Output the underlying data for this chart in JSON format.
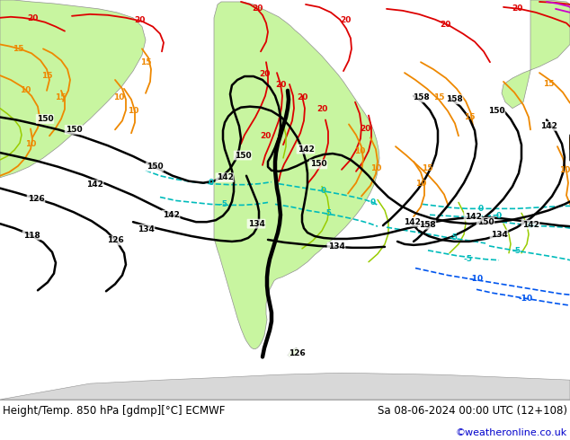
{
  "title_left": "Height/Temp. 850 hPa [gdmp][°C] ECMWF",
  "title_right": "Sa 08-06-2024 00:00 UTC (12+108)",
  "credit": "©weatheronline.co.uk",
  "ocean_color": "#c8d8e8",
  "land_color": "#c8f5a0",
  "land_border_color": "#909090",
  "fig_width": 6.34,
  "fig_height": 4.9,
  "dpi": 100,
  "footer_color": "#ffffff",
  "title_fontsize": 8.5,
  "credit_fontsize": 8,
  "credit_color": "#0000cc",
  "map_xlim": [
    0,
    634
  ],
  "map_ylim": [
    0,
    450
  ],
  "contour_lw_black": 1.8,
  "contour_lw_color": 1.2,
  "label_fontsize": 6.5
}
